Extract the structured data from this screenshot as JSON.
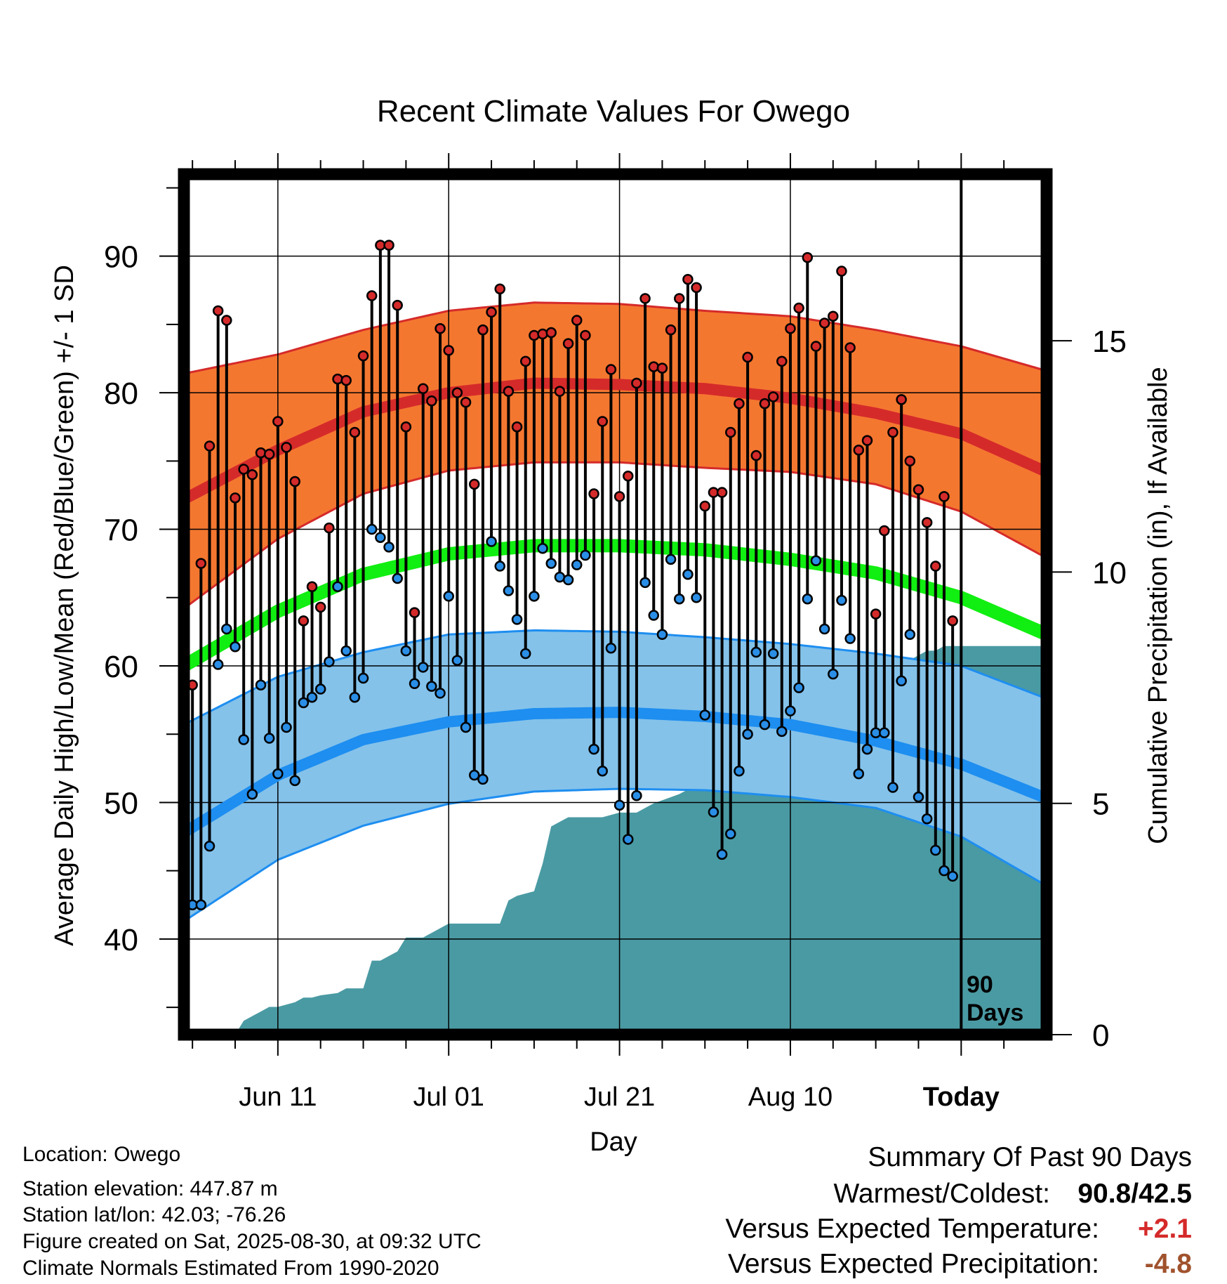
{
  "chart_data": {
    "type": "line",
    "title": "Recent Climate Values For Owego",
    "xlabel": "Day",
    "ylabel_left": "Average Daily High/Low/Mean (Red/Blue/Green) +/- 1 SD",
    "ylabel_right": "Cumulative Precipitation (in), If Available",
    "x_tick_labels": [
      "Jun 11",
      "Jul 01",
      "Jul 21",
      "Aug 10",
      "Today"
    ],
    "x_tick_days": [
      10,
      30,
      50,
      70,
      90
    ],
    "xlim": [
      -1,
      100
    ],
    "ylim_left": [
      33,
      96
    ],
    "ylim_right": [
      0,
      18.6
    ],
    "y_left_ticks": [
      40,
      50,
      60,
      70,
      80,
      90
    ],
    "y_right_ticks": [
      0,
      5,
      10,
      15
    ],
    "today_marker": {
      "day": 90,
      "label_line1": "90",
      "label_line2": "Days"
    },
    "daily_high": [
      58.6,
      67.5,
      76.1,
      86.0,
      85.3,
      72.3,
      74.4,
      74.0,
      75.6,
      75.5,
      77.9,
      76.0,
      73.5,
      63.3,
      65.8,
      64.3,
      70.1,
      81.0,
      80.9,
      77.1,
      82.7,
      87.1,
      90.8,
      90.8,
      86.4,
      77.5,
      63.9,
      80.3,
      79.4,
      84.7,
      83.1,
      80.0,
      79.3,
      73.3,
      84.6,
      85.9,
      87.6,
      80.1,
      77.5,
      82.3,
      84.2,
      84.3,
      84.4,
      80.1,
      83.6,
      85.3,
      84.2,
      72.6,
      77.9,
      81.7,
      72.4,
      73.9,
      80.7,
      86.9,
      81.9,
      81.8,
      84.6,
      86.9,
      88.3,
      87.7,
      71.7,
      72.7,
      72.7,
      77.1,
      79.2,
      82.6,
      75.4,
      79.2,
      79.7,
      82.3,
      84.7,
      86.2,
      89.9,
      83.4,
      85.1,
      85.6,
      88.9,
      83.3,
      75.8,
      76.5,
      63.8,
      69.9,
      77.1,
      79.5,
      75.0,
      72.9,
      70.5,
      67.3,
      72.4,
      63.3
    ],
    "daily_low": [
      42.5,
      42.5,
      46.8,
      60.1,
      62.7,
      61.4,
      54.6,
      50.6,
      58.6,
      54.7,
      52.1,
      55.5,
      51.6,
      57.3,
      57.7,
      58.3,
      60.3,
      65.8,
      61.1,
      57.7,
      59.1,
      70.0,
      69.4,
      68.7,
      66.4,
      61.1,
      58.7,
      59.9,
      58.5,
      58.0,
      65.1,
      60.4,
      55.5,
      52.0,
      51.7,
      69.1,
      67.3,
      65.5,
      63.4,
      60.9,
      65.1,
      68.6,
      67.5,
      66.5,
      66.3,
      67.4,
      68.1,
      53.9,
      52.3,
      61.3,
      49.8,
      47.3,
      50.5,
      66.1,
      63.7,
      62.3,
      67.8,
      64.9,
      66.7,
      65.0,
      56.4,
      49.3,
      46.2,
      47.7,
      52.3,
      55.0,
      61.0,
      55.7,
      60.9,
      55.2,
      56.7,
      58.4,
      64.9,
      67.7,
      62.7,
      59.4,
      64.8,
      62.0,
      52.1,
      53.9,
      55.1,
      55.1,
      51.1,
      58.9,
      62.3,
      50.4,
      48.8,
      46.5,
      45.0,
      44.6
    ],
    "normal_high": {
      "days": [
        -1,
        10,
        20,
        30,
        40,
        50,
        60,
        70,
        80,
        90,
        100
      ],
      "values": [
        72.2,
        75.8,
        78.6,
        80.0,
        80.7,
        80.6,
        80.3,
        79.6,
        78.5,
        77.0,
        74.2
      ]
    },
    "normal_low": {
      "days": [
        -1,
        10,
        20,
        30,
        40,
        50,
        60,
        70,
        80,
        90,
        100
      ],
      "values": [
        47.8,
        52.0,
        54.6,
        55.9,
        56.5,
        56.6,
        56.3,
        55.7,
        54.5,
        52.8,
        50.3
      ]
    },
    "normal_mean": {
      "days": [
        -1,
        10,
        20,
        30,
        40,
        50,
        60,
        70,
        80,
        90,
        100
      ],
      "values": [
        60.0,
        64.0,
        66.7,
        68.2,
        68.8,
        68.8,
        68.5,
        67.8,
        66.8,
        65.0,
        62.3
      ]
    },
    "high_sd_band": {
      "days": [
        -1,
        10,
        20,
        30,
        40,
        50,
        60,
        70,
        80,
        90,
        100
      ],
      "upper": [
        81.4,
        82.8,
        84.6,
        86.0,
        86.6,
        86.5,
        86.0,
        85.6,
        84.6,
        83.4,
        81.6
      ],
      "lower": [
        64.2,
        69.3,
        72.6,
        74.3,
        74.9,
        74.9,
        74.5,
        74.2,
        73.3,
        71.3,
        67.9
      ]
    },
    "low_sd_band": {
      "days": [
        -1,
        10,
        20,
        30,
        40,
        50,
        60,
        70,
        80,
        90,
        100
      ],
      "upper": [
        55.7,
        59.2,
        61.0,
        62.3,
        62.6,
        62.5,
        62.1,
        61.6,
        60.9,
        60.0,
        57.6
      ],
      "lower": [
        41.3,
        45.8,
        48.3,
        49.9,
        50.8,
        51.0,
        50.9,
        50.4,
        49.6,
        47.5,
        43.9
      ]
    },
    "cumulative_precip": {
      "days": [
        -1,
        5,
        6,
        7,
        8,
        9,
        10,
        12,
        13,
        14,
        15,
        17,
        18,
        20,
        21,
        22,
        24,
        25,
        27,
        28,
        30,
        31,
        32,
        36,
        37,
        38,
        40,
        41,
        42,
        43,
        44,
        45,
        46,
        48,
        50,
        51,
        52,
        53,
        54,
        57,
        58,
        59,
        60,
        61,
        62,
        64,
        66,
        68,
        70,
        72,
        74,
        76,
        79,
        80,
        81,
        82,
        83,
        84,
        85,
        86,
        87,
        88,
        90,
        100
      ],
      "values": [
        0.0,
        0.0,
        0.3,
        0.4,
        0.5,
        0.6,
        0.6,
        0.7,
        0.8,
        0.8,
        0.85,
        0.9,
        1.0,
        1.0,
        1.6,
        1.6,
        1.8,
        2.1,
        2.1,
        2.2,
        2.4,
        2.4,
        2.4,
        2.4,
        2.9,
        3.0,
        3.1,
        3.7,
        4.5,
        4.6,
        4.7,
        4.7,
        4.7,
        4.7,
        4.8,
        4.8,
        4.8,
        4.9,
        5.0,
        5.2,
        5.3,
        5.3,
        6.4,
        6.5,
        6.6,
        6.6,
        6.6,
        6.6,
        6.7,
        6.7,
        6.7,
        6.7,
        6.7,
        7.2,
        7.9,
        8.0,
        7.9,
        8.1,
        8.2,
        8.3,
        8.3,
        8.4,
        8.4,
        8.4
      ]
    },
    "colors": {
      "high_band": "#f47730",
      "high_line": "#d52a2a",
      "low_band": "#84c2ea",
      "low_line": "#1e8ef0",
      "mean_line": "#11ee11",
      "precip": "#4a9aa3",
      "high_point": "#d52a2a",
      "low_point": "#2a8ee6"
    }
  },
  "info": {
    "location": "Location: Owego",
    "elevation": "Station elevation: 447.87 m",
    "latlon": "Station lat/lon: 42.03; -76.26",
    "created": "Figure created on Sat, 2025-08-30, at 09:32 UTC",
    "normals": "Climate Normals Estimated From 1990-2020"
  },
  "summary": {
    "heading": "Summary Of Past 90 Days",
    "warm_cold_label": "Warmest/Coldest:",
    "warm_cold_value": "90.8/42.5",
    "temp_label": "Versus Expected Temperature:",
    "temp_value": "+2.1",
    "temp_color": "#d52a2a",
    "precip_label": "Versus Expected Precipitation:",
    "precip_value": "-4.8",
    "precip_color": "#a0522d"
  }
}
